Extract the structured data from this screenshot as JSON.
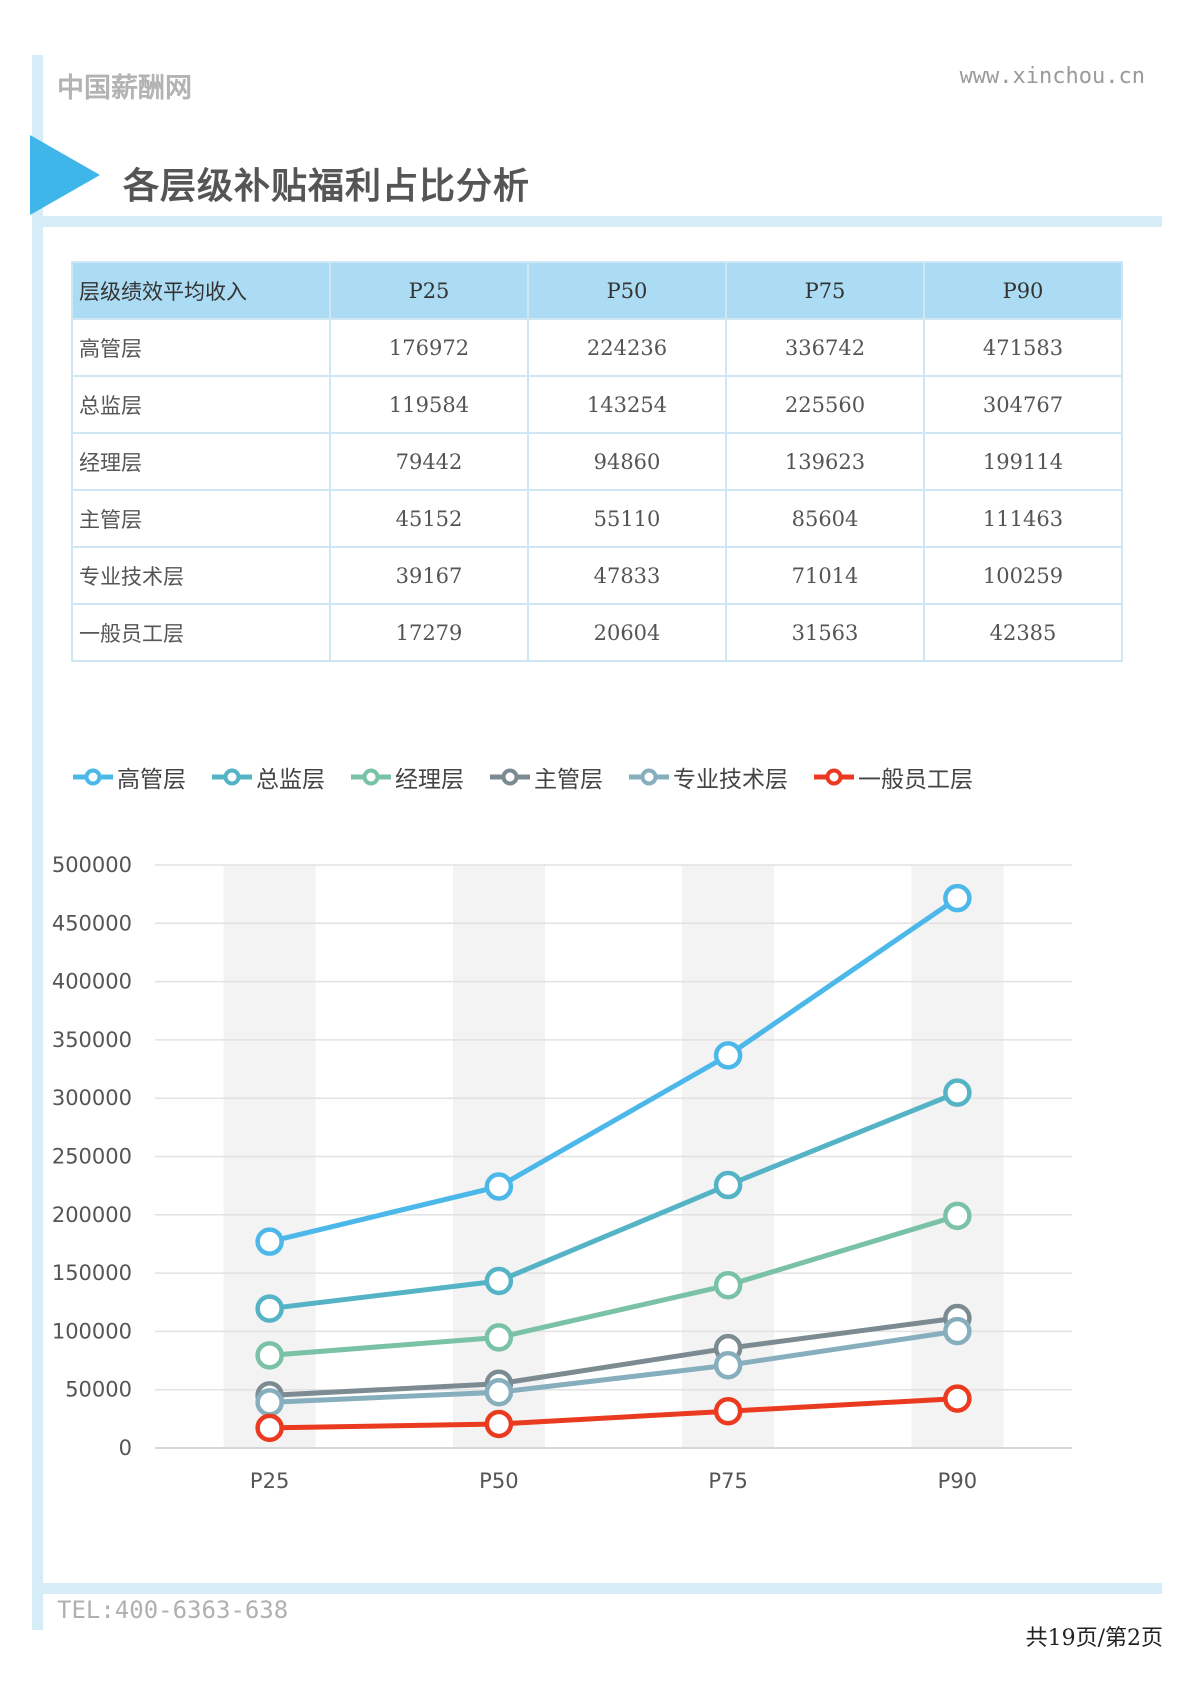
{
  "header": {
    "brand": "中国薪酬网",
    "site": "www.xinchou.cn",
    "title": "各层级补贴福利占比分析"
  },
  "table": {
    "header": [
      "层级绩效平均收入",
      "P25",
      "P50",
      "P75",
      "P90"
    ],
    "rows": [
      [
        "高管层",
        "176972",
        "224236",
        "336742",
        "471583"
      ],
      [
        "总监层",
        "119584",
        "143254",
        "225560",
        "304767"
      ],
      [
        "经理层",
        "79442",
        "94860",
        "139623",
        "199114"
      ],
      [
        "主管层",
        "45152",
        "55110",
        "85604",
        "111463"
      ],
      [
        "专业技术层",
        "39167",
        "47833",
        "71014",
        "100259"
      ],
      [
        "一般员工层",
        "17279",
        "20604",
        "31563",
        "42385"
      ]
    ]
  },
  "chart_data": {
    "type": "line",
    "categories": [
      "P25",
      "P50",
      "P75",
      "P90"
    ],
    "ylim": [
      0,
      500000
    ],
    "yticks": [
      "500000",
      "450000",
      "400000",
      "350000",
      "300000",
      "250000",
      "200000",
      "150000",
      "100000",
      "50000",
      "0"
    ],
    "grid": true,
    "legend": "top-left",
    "series": [
      {
        "name": "高管层",
        "color": "#4cb8ea",
        "values": [
          176972,
          224236,
          336742,
          471583
        ]
      },
      {
        "name": "总监层",
        "color": "#55b3c6",
        "values": [
          119584,
          143254,
          225560,
          304767
        ]
      },
      {
        "name": "经理层",
        "color": "#7ac2a6",
        "values": [
          79442,
          94860,
          139623,
          199114
        ]
      },
      {
        "name": "主管层",
        "color": "#7b8b91",
        "values": [
          45152,
          55110,
          85604,
          111463
        ]
      },
      {
        "name": "专业技术层",
        "color": "#86aebd",
        "values": [
          39167,
          47833,
          71014,
          100259
        ]
      },
      {
        "name": "一般员工层",
        "color": "#ea3a1f",
        "values": [
          17279,
          20604,
          31563,
          42385
        ]
      }
    ]
  },
  "footer": {
    "tel": "TEL:400-6363-638",
    "pager": "共19页/第2页"
  }
}
